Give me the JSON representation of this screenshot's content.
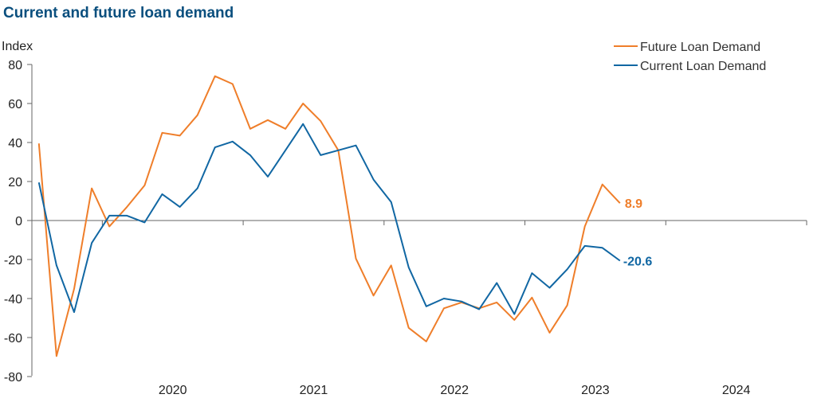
{
  "chart_data": {
    "type": "line",
    "title": "Current and future loan demand",
    "ylabel": "Index",
    "xlabel": "",
    "ylim": [
      -80,
      80
    ],
    "yticks": [
      80,
      60,
      40,
      20,
      0,
      -20,
      -40,
      -60,
      -80
    ],
    "xlim": [
      2019.5,
      2025.0
    ],
    "xticks": [
      "2020",
      "2021",
      "2022",
      "2023",
      "2024"
    ],
    "grid": false,
    "legend": "top-right",
    "series": [
      {
        "name": "Future Loan Demand",
        "color": "#ef7e2a",
        "end_label": "8.9",
        "x": [
          2019.55,
          2019.675,
          2019.8,
          2019.925,
          2020.05,
          2020.175,
          2020.3,
          2020.425,
          2020.55,
          2020.675,
          2020.8,
          2020.925,
          2021.05,
          2021.175,
          2021.3,
          2021.425,
          2021.55,
          2021.675,
          2021.8,
          2021.925,
          2022.05,
          2022.175,
          2022.3,
          2022.425,
          2022.55,
          2022.675,
          2022.8,
          2022.925,
          2023.05,
          2023.175,
          2023.3,
          2023.425,
          2023.55,
          2023.675
        ],
        "y": [
          39.5,
          -69.5,
          -35,
          16.5,
          -3,
          7,
          18,
          45,
          43.5,
          54,
          74,
          70,
          47,
          51.5,
          47,
          60,
          51,
          36,
          -19.5,
          -38.5,
          -23,
          -55,
          -62,
          -45,
          -42,
          -45,
          -42,
          -51,
          -39.5,
          -57.5,
          -43.5,
          -3,
          18.5,
          8.9
        ]
      },
      {
        "name": "Current Loan Demand",
        "color": "#1167a3",
        "end_label": "-20.6",
        "x": [
          2019.55,
          2019.675,
          2019.8,
          2019.925,
          2020.05,
          2020.175,
          2020.3,
          2020.425,
          2020.55,
          2020.675,
          2020.8,
          2020.925,
          2021.05,
          2021.175,
          2021.3,
          2021.425,
          2021.55,
          2021.675,
          2021.8,
          2021.925,
          2022.05,
          2022.175,
          2022.3,
          2022.425,
          2022.55,
          2022.675,
          2022.8,
          2022.925,
          2023.05,
          2023.175,
          2023.3,
          2023.425,
          2023.55,
          2023.675
        ],
        "y": [
          19.5,
          -23,
          -47,
          -11.5,
          2.5,
          2.5,
          -1,
          13.5,
          7,
          16.5,
          37.5,
          40.5,
          33.5,
          22.5,
          36,
          49.5,
          33.5,
          36,
          38.5,
          21,
          9.5,
          -24,
          -44,
          -40,
          -41.5,
          -45.5,
          -32,
          -48,
          -27,
          -34.5,
          -25,
          -13,
          -14,
          -20.6
        ]
      }
    ]
  }
}
